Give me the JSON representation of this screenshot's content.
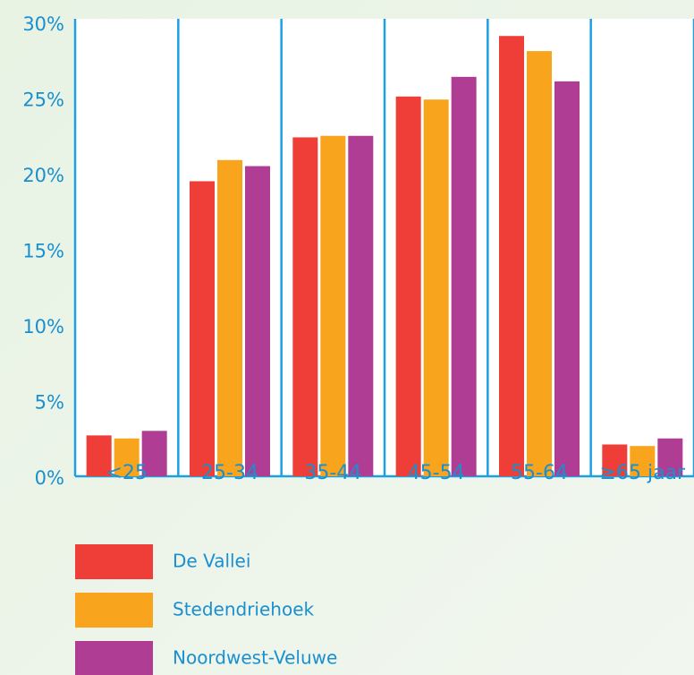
{
  "chart_data": {
    "type": "bar",
    "categories": [
      "<25",
      "25-34",
      "35-44",
      "45-54",
      "55-64",
      "≥65 jaar"
    ],
    "series": [
      {
        "name": "De Vallei",
        "color": "#ee3e37",
        "values": [
          2.7,
          19.5,
          22.4,
          25.1,
          29.1,
          2.1
        ]
      },
      {
        "name": "Stedendriehoek",
        "color": "#f8a41c",
        "values": [
          2.5,
          20.9,
          22.5,
          24.9,
          28.1,
          2.0
        ]
      },
      {
        "name": "Noordwest-Veluwe",
        "color": "#b03d94",
        "values": [
          3.0,
          20.5,
          22.5,
          26.4,
          26.1,
          2.5
        ]
      }
    ],
    "ylim": [
      0,
      30
    ],
    "yticks": [
      {
        "value": 0,
        "label": "0%"
      },
      {
        "value": 5,
        "label": "5%"
      },
      {
        "value": 10,
        "label": "10%"
      },
      {
        "value": 15,
        "label": "15%"
      },
      {
        "value": 20,
        "label": "20%"
      },
      {
        "value": 25,
        "label": "25%"
      },
      {
        "value": 30,
        "label": "30%"
      }
    ],
    "legend": "bottom-left"
  }
}
